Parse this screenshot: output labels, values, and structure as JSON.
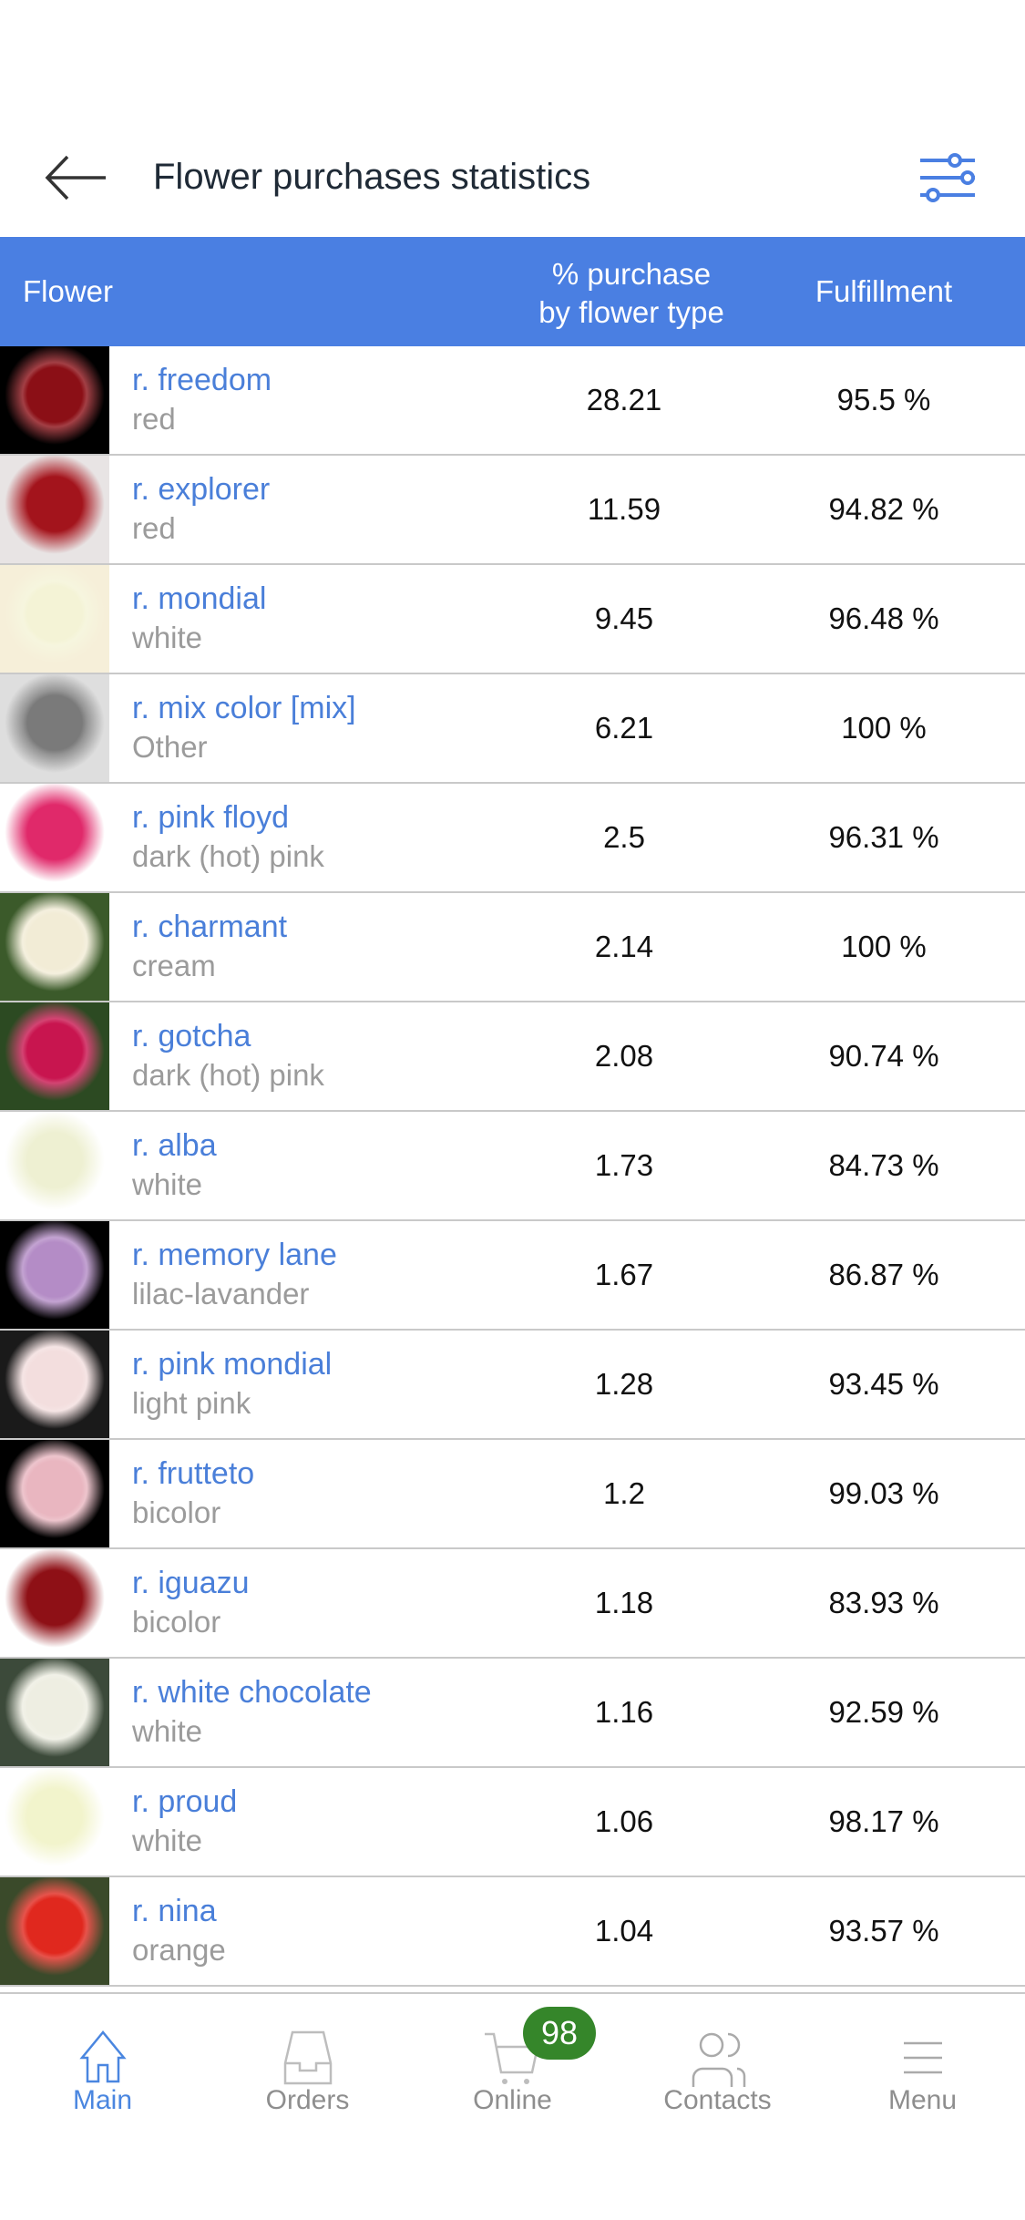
{
  "header": {
    "title": "Flower purchases statistics",
    "back_icon": "arrow-left-icon",
    "filter_icon": "sliders-icon"
  },
  "colors": {
    "accent": "#4a7fe2",
    "link": "#4a7fd9",
    "badge": "#35862a"
  },
  "table": {
    "columns": [
      "Flower",
      "% purchase",
      "by flower type",
      "Fulfillment"
    ],
    "rows": [
      {
        "name": "r. freedom",
        "color": "red",
        "pct": "28.21",
        "fulfillment": "95.5 %",
        "img": [
          "#8b0f16",
          "#000000"
        ]
      },
      {
        "name": "r. explorer",
        "color": "red",
        "pct": "11.59",
        "fulfillment": "94.82 %",
        "img": [
          "#a3141c",
          "#e8e4e4"
        ]
      },
      {
        "name": "r. mondial",
        "color": "white",
        "pct": "9.45",
        "fulfillment": "96.48 %",
        "img": [
          "#f4f3d6",
          "#f6efd9"
        ]
      },
      {
        "name": "r. mix color [mix]",
        "color": "Other",
        "pct": "6.21",
        "fulfillment": "100 %",
        "img": [
          "#7a7a7a",
          "#dedede"
        ]
      },
      {
        "name": "r. pink floyd",
        "color": "dark (hot) pink",
        "pct": "2.5",
        "fulfillment": "96.31 %",
        "img": [
          "#e0296a",
          "#ffffff"
        ]
      },
      {
        "name": "r. charmant",
        "color": "cream",
        "pct": "2.14",
        "fulfillment": "100 %",
        "img": [
          "#f2ecd6",
          "#3b5a2a"
        ]
      },
      {
        "name": "r. gotcha",
        "color": "dark (hot) pink",
        "pct": "2.08",
        "fulfillment": "90.74 %",
        "img": [
          "#c8154f",
          "#2c4a22"
        ]
      },
      {
        "name": "r. alba",
        "color": "white",
        "pct": "1.73",
        "fulfillment": "84.73 %",
        "img": [
          "#eef0d2",
          "#ffffff"
        ]
      },
      {
        "name": "r. memory lane",
        "color": "lilac-lavander",
        "pct": "1.67",
        "fulfillment": "86.87 %",
        "img": [
          "#b48cc6",
          "#000000"
        ]
      },
      {
        "name": "r. pink mondial",
        "color": "light pink",
        "pct": "1.28",
        "fulfillment": "93.45 %",
        "img": [
          "#f3dede",
          "#1a1a1a"
        ]
      },
      {
        "name": "r. frutteto",
        "color": "bicolor",
        "pct": "1.2",
        "fulfillment": "99.03 %",
        "img": [
          "#e9b6c0",
          "#000000"
        ]
      },
      {
        "name": "r. iguazu",
        "color": "bicolor",
        "pct": "1.18",
        "fulfillment": "83.93 %",
        "img": [
          "#8e1016",
          "#ffffff"
        ]
      },
      {
        "name": "r. white chocolate",
        "color": "white",
        "pct": "1.16",
        "fulfillment": "92.59 %",
        "img": [
          "#eeeee2",
          "#3c4a3a"
        ]
      },
      {
        "name": "r. proud",
        "color": "white",
        "pct": "1.06",
        "fulfillment": "98.17 %",
        "img": [
          "#f2f4cc",
          "#ffffff"
        ]
      },
      {
        "name": "r. nina",
        "color": "orange",
        "pct": "1.04",
        "fulfillment": "93.57 %",
        "img": [
          "#e0281e",
          "#3a4a2a"
        ]
      }
    ]
  },
  "nav": {
    "items": [
      {
        "label": "Main",
        "icon": "home-icon",
        "active": true
      },
      {
        "label": "Orders",
        "icon": "inbox-icon"
      },
      {
        "label": "Online",
        "icon": "cart-icon"
      },
      {
        "label": "Contacts",
        "icon": "users-icon"
      },
      {
        "label": "Menu",
        "icon": "hamburger-icon"
      }
    ],
    "cart_badge": "98"
  }
}
